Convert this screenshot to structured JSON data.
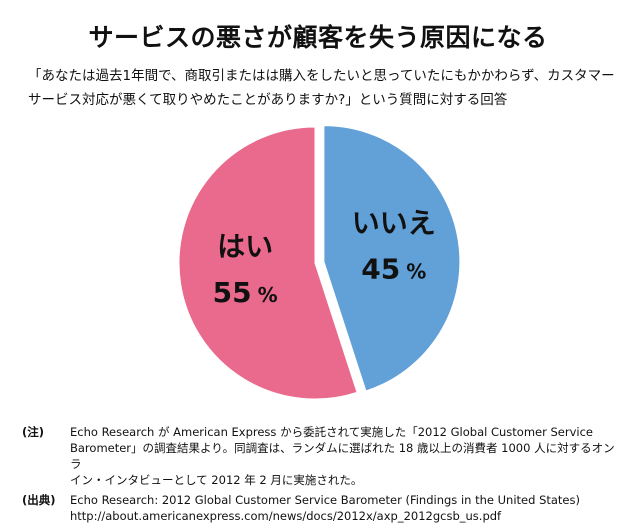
{
  "title": "サービスの悪さが顧客を失う原因になる",
  "subtitle": "「あなたは過去1年間で、商取引またはは購入をしたいと思っていたにもかかわらず、カスタマーサービス対応が悪くて取りやめたことがありますか?」という質問に対する回答",
  "chart_data": {
    "type": "pie",
    "title": "",
    "slices": [
      {
        "label": "はい",
        "value": 55,
        "value_label": "55",
        "unit": "%",
        "color": "#e96a8c"
      },
      {
        "label": "いいえ",
        "value": 45,
        "value_label": "45",
        "unit": "%",
        "color": "#62a0d8"
      }
    ],
    "start": "12 o'clock",
    "direction": "clockwise (いいえ first)",
    "exploded": "いいえ"
  },
  "notes": [
    {
      "tag": "(注)",
      "lines": [
        "Echo Research が American Express から委託されて実施した「2012 Global Customer Service",
        "Barometer」の調査結果より。同調査は、ランダムに選ばれた 18 歳以上の消費者 1000 人に対するオンラ",
        "イン・インタビューとして 2012 年 2 月に実施された。"
      ]
    },
    {
      "tag": "(出典)",
      "lines": [
        "Echo Research: 2012 Global Customer Service Barometer (Findings in the United States)",
        "http://about.americanexpress.com/news/docs/2012x/axp_2012gcsb_us.pdf"
      ]
    }
  ]
}
